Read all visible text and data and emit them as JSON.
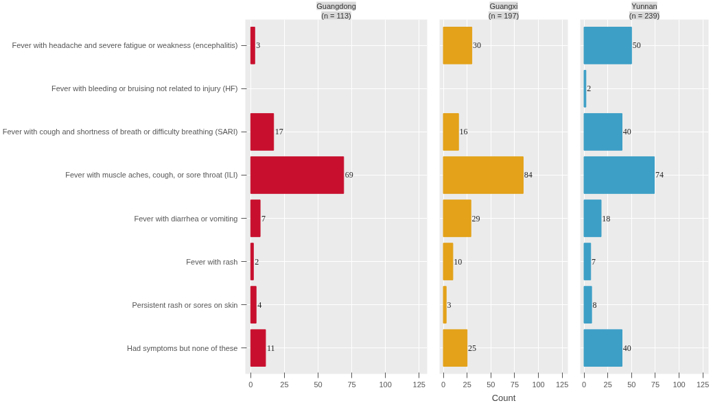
{
  "chart_data": [
    {
      "type": "bar",
      "orientation": "horizontal",
      "title": "Guangdong",
      "subtitle": "(n = 113)",
      "categories": [
        "Fever with headache and severe fatigue or weakness (encephalitis)",
        "Fever with bleeding or bruising not related to injury (HF)",
        "Fever with cough and shortness of breath or difficulty breathing (SARI)",
        "Fever with muscle aches, cough, or sore throat (ILI)",
        "Fever with diarrhea or vomiting",
        "Fever with rash",
        "Persistent rash or sores on skin",
        "Had symptoms but none of these"
      ],
      "values": [
        3,
        null,
        17,
        69,
        7,
        2,
        4,
        11
      ],
      "color": "#c8102e",
      "data_labels": true,
      "xlim": [
        -4,
        131
      ],
      "xticks": [
        0,
        25,
        50,
        75,
        100,
        125
      ],
      "grid": true
    },
    {
      "type": "bar",
      "orientation": "horizontal",
      "title": "Guangxi",
      "subtitle": "(n = 197)",
      "xlabel": "Count",
      "categories": [
        null,
        null,
        null,
        null,
        null,
        null,
        null,
        null
      ],
      "values": [
        30,
        null,
        16,
        84,
        29,
        10,
        3,
        25
      ],
      "color": "#e3a21a",
      "data_labels": true,
      "xlim": [
        -4,
        131
      ],
      "xticks": [
        0,
        25,
        50,
        75,
        100,
        125
      ],
      "grid": true,
      "tick_labels": "x"
    },
    {
      "type": "bar",
      "orientation": "horizontal",
      "title": "Yunnan",
      "subtitle": "(n = 239)",
      "categories": [
        null,
        null,
        null,
        null,
        null,
        null,
        null,
        null
      ],
      "values": [
        50,
        2,
        40,
        74,
        18,
        7,
        8,
        40
      ],
      "color": "#3d9fc6",
      "data_labels": true,
      "xlim": [
        -4,
        131
      ],
      "xticks": [
        0,
        25,
        50,
        75,
        100,
        125
      ],
      "grid": true,
      "tick_labels": "x"
    }
  ]
}
